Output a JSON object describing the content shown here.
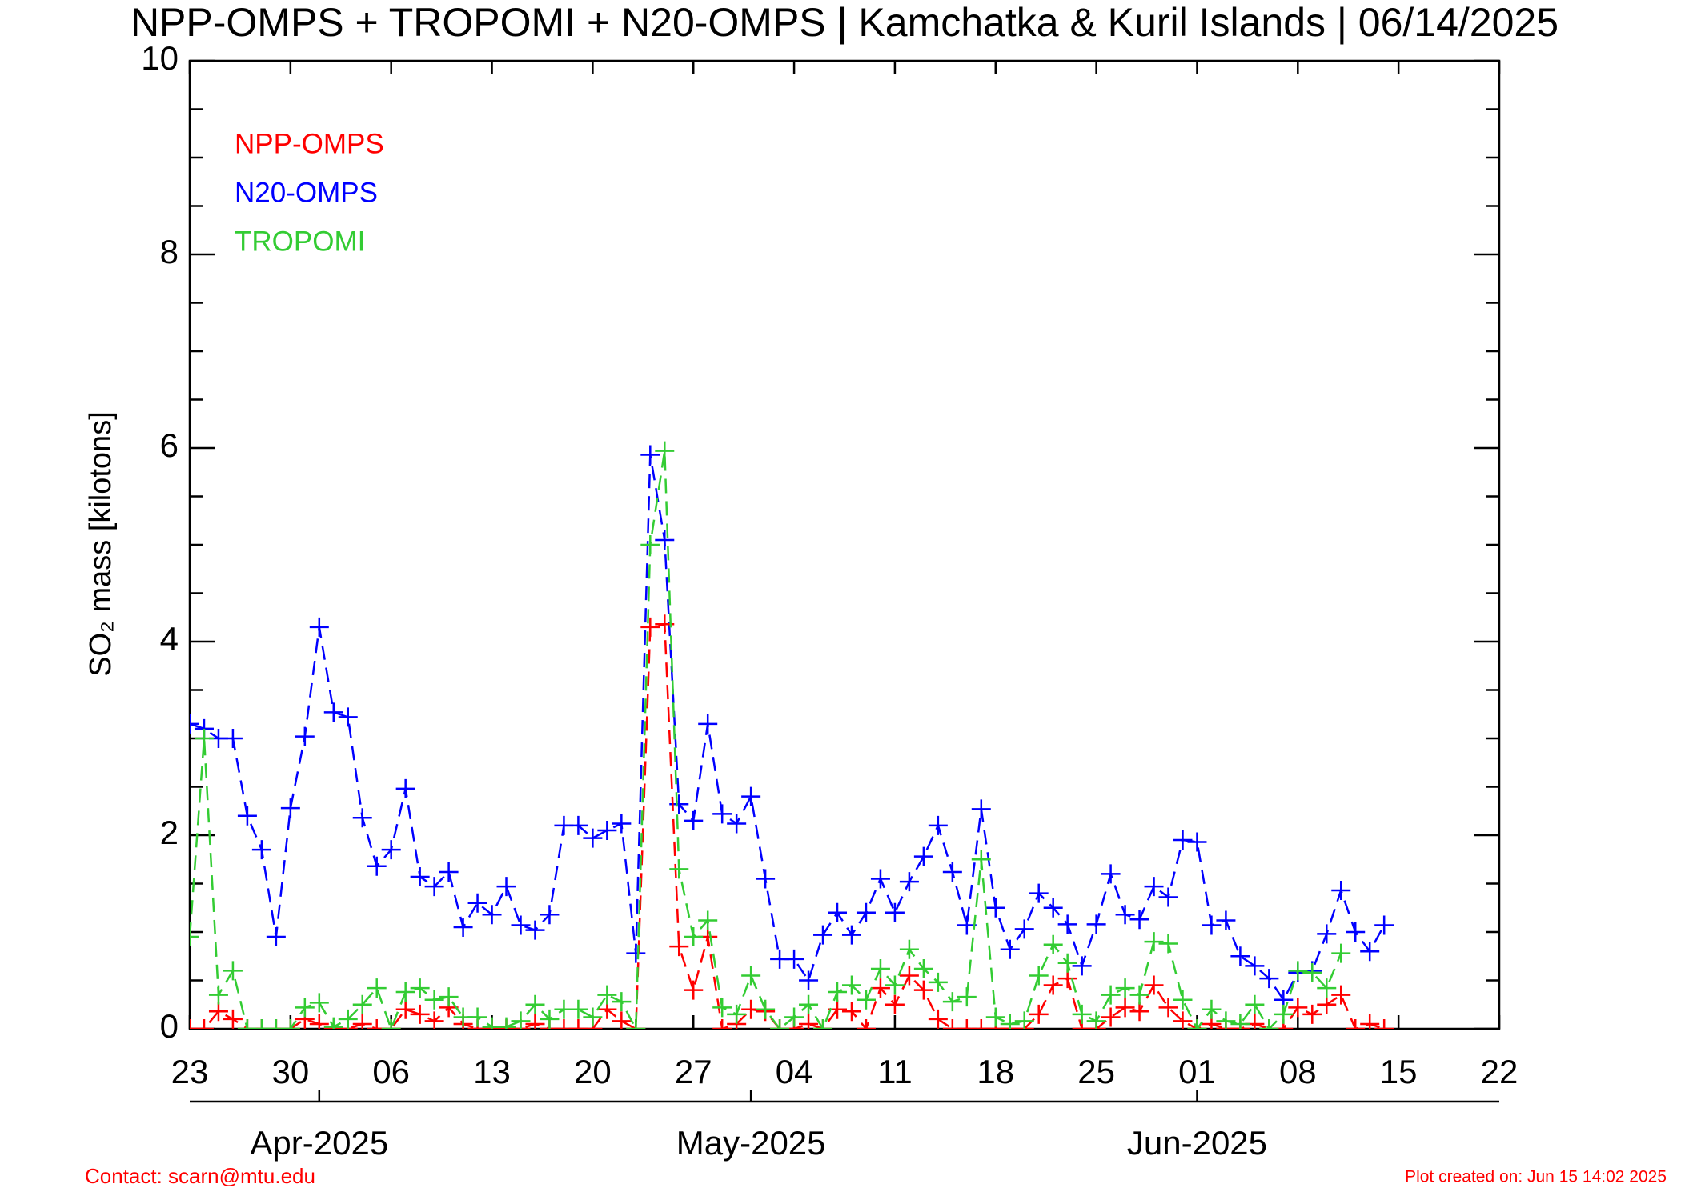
{
  "chart_data": {
    "type": "line",
    "title": "NPP-OMPS + TROPOMI + N20-OMPS | Kamchatka & Kuril Islands | 06/14/2025",
    "ylabel": "SO₂ mass [kilotons]",
    "footer_left": "Contact: scarn@mtu.edu",
    "footer_right": "Plot created on: Jun 15 14:02 2025",
    "legend": "upper left",
    "marker": "plus",
    "linestyle": "dashed",
    "x": [
      "2025-03-23",
      "2025-03-24",
      "2025-03-25",
      "2025-03-26",
      "2025-03-27",
      "2025-03-28",
      "2025-03-29",
      "2025-03-30",
      "2025-03-31",
      "2025-04-01",
      "2025-04-02",
      "2025-04-03",
      "2025-04-04",
      "2025-04-05",
      "2025-04-06",
      "2025-04-07",
      "2025-04-08",
      "2025-04-09",
      "2025-04-10",
      "2025-04-11",
      "2025-04-12",
      "2025-04-13",
      "2025-04-14",
      "2025-04-15",
      "2025-04-16",
      "2025-04-17",
      "2025-04-18",
      "2025-04-19",
      "2025-04-20",
      "2025-04-21",
      "2025-04-22",
      "2025-04-23",
      "2025-04-24",
      "2025-04-25",
      "2025-04-26",
      "2025-04-27",
      "2025-04-28",
      "2025-04-29",
      "2025-04-30",
      "2025-05-01",
      "2025-05-02",
      "2025-05-03",
      "2025-05-04",
      "2025-05-05",
      "2025-05-06",
      "2025-05-07",
      "2025-05-08",
      "2025-05-09",
      "2025-05-10",
      "2025-05-11",
      "2025-05-12",
      "2025-05-13",
      "2025-05-14",
      "2025-05-15",
      "2025-05-16",
      "2025-05-17",
      "2025-05-18",
      "2025-05-19",
      "2025-05-20",
      "2025-05-21",
      "2025-05-22",
      "2025-05-23",
      "2025-05-24",
      "2025-05-25",
      "2025-05-26",
      "2025-05-27",
      "2025-05-28",
      "2025-05-29",
      "2025-05-30",
      "2025-05-31",
      "2025-06-01",
      "2025-06-02",
      "2025-06-03",
      "2025-06-04",
      "2025-06-05",
      "2025-06-06",
      "2025-06-07",
      "2025-06-08",
      "2025-06-09",
      "2025-06-10",
      "2025-06-11",
      "2025-06-12",
      "2025-06-13",
      "2025-06-14"
    ],
    "series": [
      {
        "name": "NPP-OMPS",
        "color": "#ff0000",
        "values": [
          0,
          0,
          0.18,
          0.1,
          0,
          0,
          0,
          0,
          0.1,
          0.05,
          0,
          0,
          0.05,
          0,
          0,
          0.2,
          0.15,
          0.08,
          0.22,
          0.05,
          0,
          0,
          0,
          0,
          0.05,
          0,
          0,
          0,
          0,
          0.2,
          0.08,
          0,
          4.15,
          4.18,
          0.85,
          0.4,
          0.95,
          0,
          0.05,
          0.2,
          0.18,
          0,
          0,
          0.05,
          0,
          0.2,
          0.18,
          0,
          0.42,
          0.25,
          0.55,
          0.4,
          0.1,
          0,
          0,
          0,
          0,
          0,
          0,
          0.15,
          0.45,
          0.52,
          0,
          0,
          0.12,
          0.22,
          0.18,
          0.45,
          0.22,
          0.08,
          0,
          0.05,
          0,
          0,
          0.05,
          0,
          0,
          0.22,
          0.15,
          0.25,
          0.35,
          0,
          0.05,
          0
        ]
      },
      {
        "name": "N20-OMPS",
        "color": "#0000ff",
        "values": [
          3.15,
          3.1,
          3.0,
          3.0,
          2.2,
          1.85,
          0.95,
          2.28,
          3.02,
          4.15,
          3.27,
          3.22,
          2.18,
          1.68,
          1.85,
          2.48,
          1.57,
          1.47,
          1.62,
          1.05,
          1.3,
          1.18,
          1.47,
          1.07,
          1.02,
          1.18,
          2.1,
          2.1,
          1.97,
          2.05,
          2.12,
          0.78,
          5.93,
          5.05,
          2.32,
          2.15,
          3.15,
          2.22,
          2.12,
          2.4,
          1.55,
          0.72,
          0.72,
          0.5,
          0.97,
          1.2,
          0.97,
          1.2,
          1.55,
          1.2,
          1.52,
          1.78,
          2.1,
          1.62,
          1.07,
          2.27,
          1.25,
          0.82,
          1.03,
          1.4,
          1.25,
          1.08,
          0.65,
          1.08,
          1.6,
          1.18,
          1.13,
          1.47,
          1.36,
          1.95,
          1.93,
          1.07,
          1.12,
          0.75,
          0.65,
          0.52,
          0.3,
          0.58,
          0.6,
          0.98,
          1.43,
          1.0,
          0.8,
          1.07
        ]
      },
      {
        "name": "TROPOMI",
        "color": "#33cc33",
        "values": [
          0.95,
          3.0,
          0.35,
          0.6,
          0,
          0,
          0,
          0,
          0.22,
          0.27,
          0.02,
          0.1,
          0.25,
          0.42,
          0,
          0.38,
          0.42,
          0.3,
          0.33,
          0.12,
          0.12,
          0.02,
          0.02,
          0.08,
          0.25,
          0.1,
          0.2,
          0.2,
          0.12,
          0.35,
          0.28,
          0,
          5.0,
          5.97,
          1.65,
          0.95,
          1.12,
          0.22,
          0.15,
          0.55,
          0.2,
          0,
          0.12,
          0.25,
          0,
          0.38,
          0.45,
          0.3,
          0.62,
          0.45,
          0.82,
          0.62,
          0.48,
          0.28,
          0.33,
          1.75,
          0.12,
          0.05,
          0.08,
          0.55,
          0.87,
          0.68,
          0.15,
          0.08,
          0.35,
          0.42,
          0.35,
          0.9,
          0.88,
          0.3,
          0,
          0.2,
          0.08,
          0.05,
          0.25,
          0,
          0.15,
          0.6,
          0.58,
          0.42,
          0.78,
          null,
          null,
          null
        ]
      }
    ],
    "xlim": [
      "2025-03-23",
      "2025-06-22"
    ],
    "xticks": [
      {
        "value": "2025-03-23",
        "label": "23"
      },
      {
        "value": "2025-03-30",
        "label": "30"
      },
      {
        "value": "2025-04-06",
        "label": "06"
      },
      {
        "value": "2025-04-13",
        "label": "13"
      },
      {
        "value": "2025-04-20",
        "label": "20"
      },
      {
        "value": "2025-04-27",
        "label": "27"
      },
      {
        "value": "2025-05-04",
        "label": "04"
      },
      {
        "value": "2025-05-11",
        "label": "11"
      },
      {
        "value": "2025-05-18",
        "label": "18"
      },
      {
        "value": "2025-05-25",
        "label": "25"
      },
      {
        "value": "2025-06-01",
        "label": "01"
      },
      {
        "value": "2025-06-08",
        "label": "08"
      },
      {
        "value": "2025-06-15",
        "label": "15"
      },
      {
        "value": "2025-06-22",
        "label": "22"
      }
    ],
    "month_ticks": [
      {
        "value": "2025-04-01",
        "label": "Apr-2025"
      },
      {
        "value": "2025-05-01",
        "label": "May-2025"
      },
      {
        "value": "2025-06-01",
        "label": "Jun-2025"
      }
    ],
    "ylim": [
      0,
      10
    ],
    "yticks": [
      0,
      2,
      4,
      6,
      8,
      10
    ],
    "yminorticks": [
      0.5,
      1,
      1.5,
      2.5,
      3,
      3.5,
      4.5,
      5,
      5.5,
      6.5,
      7,
      7.5,
      8.5,
      9,
      9.5
    ]
  }
}
